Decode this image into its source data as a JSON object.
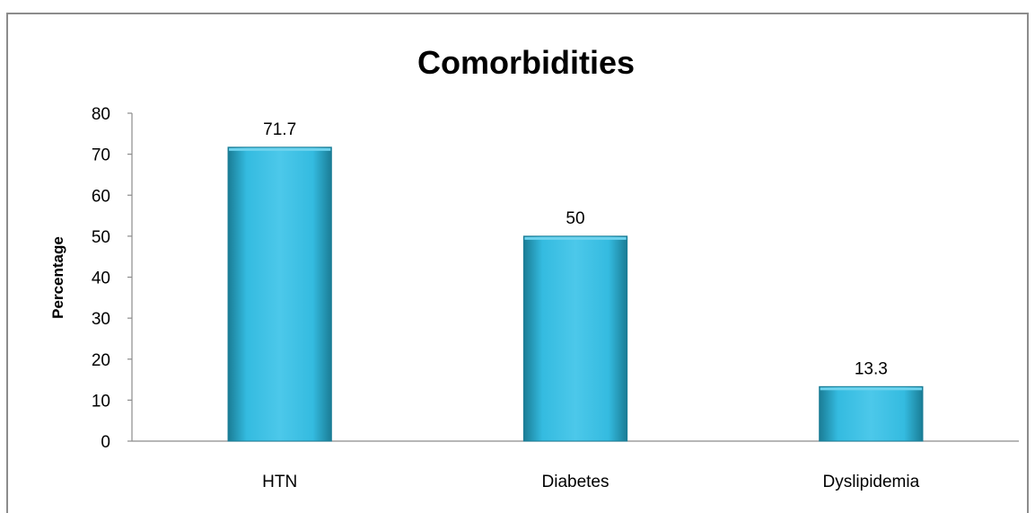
{
  "chart_data": {
    "type": "bar",
    "title": "Comorbidities",
    "xlabel": "",
    "ylabel": "Percentage",
    "categories": [
      "HTN",
      "Diabetes",
      "Dyslipidemia"
    ],
    "values": [
      71.7,
      50,
      13.3
    ],
    "data_labels": [
      "71.7",
      "50",
      "13.3"
    ],
    "ylim": [
      0,
      80
    ],
    "yticks": [
      "0",
      "10",
      "20",
      "30",
      "40",
      "50",
      "60",
      "70",
      "80"
    ],
    "grid": false,
    "legend": "none",
    "colors": {
      "bar": "#34BBE0",
      "bar_dark": "#1A7C95",
      "bar_light": "#6FD3EE"
    }
  }
}
